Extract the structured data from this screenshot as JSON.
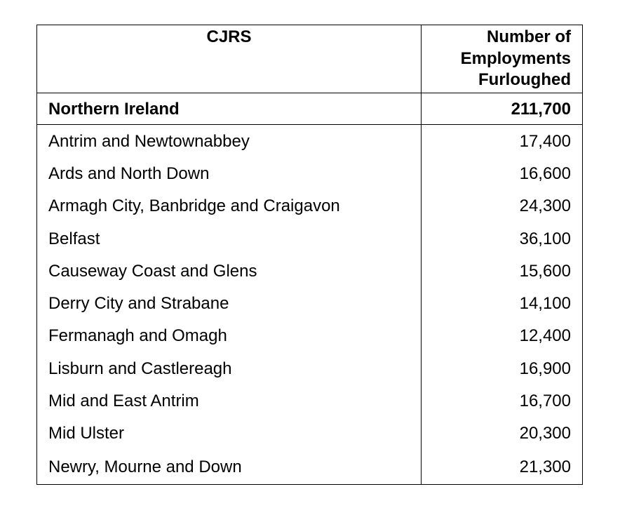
{
  "header": {
    "col1": "CJRS",
    "col2_lines": [
      "Number of",
      "Employments",
      "Furloughed"
    ]
  },
  "total": {
    "name": "Northern Ireland",
    "value": "211,700"
  },
  "rows": [
    {
      "name": "Antrim and Newtownabbey",
      "value": "17,400"
    },
    {
      "name": "Ards and North Down",
      "value": "16,600"
    },
    {
      "name": "Armagh City, Banbridge and Craigavon",
      "value": "24,300"
    },
    {
      "name": "Belfast",
      "value": "36,100"
    },
    {
      "name": "Causeway Coast and Glens",
      "value": "15,600"
    },
    {
      "name": "Derry City and Strabane",
      "value": "14,100"
    },
    {
      "name": "Fermanagh and Omagh",
      "value": "12,400"
    },
    {
      "name": "Lisburn and Castlereagh",
      "value": "16,900"
    },
    {
      "name": "Mid and East Antrim",
      "value": "16,700"
    },
    {
      "name": "Mid Ulster",
      "value": "20,300"
    },
    {
      "name": "Newry, Mourne and Down",
      "value": "21,300"
    }
  ]
}
